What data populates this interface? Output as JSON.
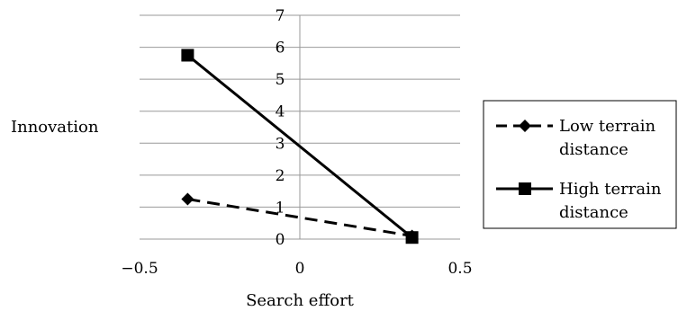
{
  "chart_data": {
    "type": "line",
    "title": "",
    "xlabel": "Search effort",
    "ylabel": "Innovation",
    "xlim": [
      -0.5,
      0.5
    ],
    "ylim": [
      0,
      7
    ],
    "x_ticks": [
      "−0.5",
      "0",
      "0.5"
    ],
    "y_ticks": [
      "0",
      "1",
      "2",
      "3",
      "4",
      "5",
      "6",
      "7"
    ],
    "grid": "horizontal",
    "legend": "right",
    "series": [
      {
        "name": "Low terrain distance",
        "legend_lines": [
          "Low terrain",
          "distance"
        ],
        "style": "dashed",
        "marker": "diamond",
        "x": [
          -0.35,
          0.35
        ],
        "y": [
          1.25,
          0.1
        ]
      },
      {
        "name": "High terrain distance",
        "legend_lines": [
          "High terrain",
          "distance"
        ],
        "style": "solid",
        "marker": "square",
        "x": [
          -0.35,
          0.35
        ],
        "y": [
          5.75,
          0.05
        ]
      }
    ]
  }
}
